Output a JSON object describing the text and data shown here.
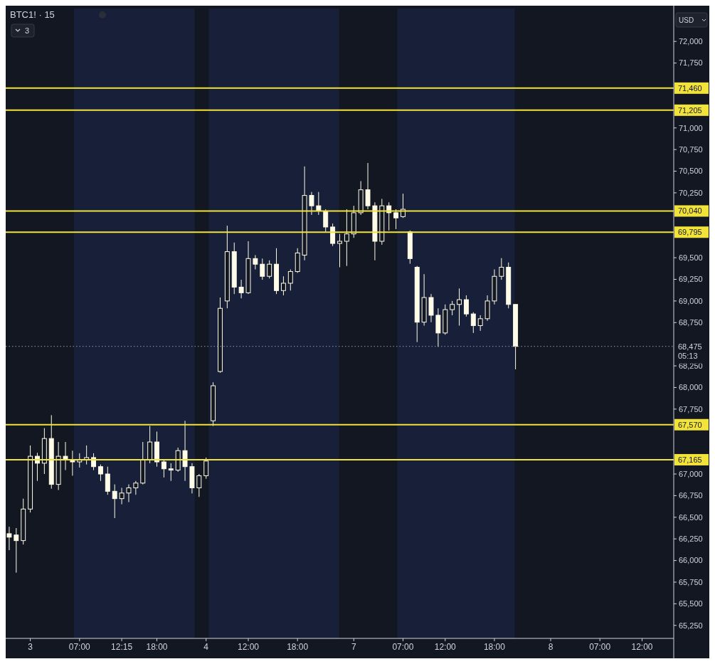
{
  "chart_data": {
    "type": "candlestick",
    "title": "BTC1! · 15",
    "color": "#fffde7",
    "categories": [
      null,
      null,
      null,
      "3",
      null,
      null,
      null,
      null,
      null,
      null,
      "07:00",
      null,
      null,
      null,
      null,
      null,
      "12:15",
      null,
      null,
      null,
      null,
      "18:00",
      null,
      null,
      null,
      null,
      null,
      null,
      "4",
      null,
      null,
      null,
      null,
      null,
      "12:00",
      null,
      null,
      null,
      null,
      null,
      null,
      "18:00",
      null,
      null,
      null,
      null,
      null,
      null,
      null,
      "7",
      null,
      null,
      null,
      null,
      null,
      null,
      "07:00",
      null,
      null,
      null,
      null,
      null,
      "12:00",
      null,
      null,
      null,
      null,
      null,
      null,
      "18:00",
      null,
      null,
      null,
      null,
      null,
      null,
      null,
      "8",
      null,
      null,
      null,
      null,
      null,
      null,
      "07:00",
      null,
      null,
      null,
      null,
      null,
      "12:00",
      null,
      null,
      null,
      null
    ],
    "ohlc": [
      [
        66310,
        66390,
        66120,
        66270
      ],
      [
        66295,
        66375,
        65860,
        66230
      ],
      [
        66230,
        66715,
        66185,
        66595
      ],
      [
        66595,
        67330,
        66555,
        67205
      ],
      [
        67205,
        67245,
        66920,
        67125
      ],
      [
        67125,
        67530,
        67000,
        67410
      ],
      [
        67410,
        67680,
        66830,
        66880
      ],
      [
        66880,
        67370,
        66815,
        67205
      ],
      [
        67205,
        67370,
        67045,
        67165
      ],
      [
        67165,
        67270,
        66980,
        67140
      ],
      [
        67140,
        67240,
        67075,
        67165
      ],
      [
        67165,
        67330,
        67110,
        67190
      ],
      [
        67190,
        67240,
        67045,
        67085
      ],
      [
        67085,
        67110,
        66920,
        67000
      ],
      [
        67000,
        67085,
        66760,
        66800
      ],
      [
        66800,
        66880,
        66490,
        66715
      ],
      [
        66715,
        66840,
        66650,
        66780
      ],
      [
        66780,
        66880,
        66675,
        66840
      ],
      [
        66840,
        66920,
        66760,
        66895
      ],
      [
        66895,
        67370,
        66880,
        67165
      ],
      [
        67165,
        67555,
        67125,
        67370
      ],
      [
        67370,
        67490,
        67085,
        67140
      ],
      [
        67140,
        67165,
        66960,
        67060
      ],
      [
        67060,
        67125,
        66920,
        67045
      ],
      [
        67045,
        67305,
        67025,
        67270
      ],
      [
        67270,
        67615,
        66920,
        67085
      ],
      [
        67085,
        67125,
        66775,
        66840
      ],
      [
        66840,
        67000,
        66735,
        66980
      ],
      [
        66980,
        67190,
        66945,
        67150
      ],
      [
        67615,
        68060,
        67555,
        68020
      ],
      [
        68185,
        69040,
        68170,
        68915
      ],
      [
        69000,
        69870,
        68915,
        69570
      ],
      [
        69570,
        69675,
        69080,
        69160
      ],
      [
        69160,
        69245,
        69030,
        69095
      ],
      [
        69095,
        69690,
        69080,
        69490
      ],
      [
        69490,
        69530,
        69365,
        69425
      ],
      [
        69425,
        69490,
        69245,
        69285
      ],
      [
        69285,
        69470,
        69260,
        69425
      ],
      [
        69425,
        69610,
        69080,
        69120
      ],
      [
        69120,
        69285,
        69065,
        69205
      ],
      [
        69205,
        69365,
        69120,
        69340
      ],
      [
        69340,
        69610,
        69325,
        69555
      ],
      [
        69530,
        70555,
        69470,
        70220
      ],
      [
        70220,
        70260,
        69995,
        70100
      ],
      [
        70100,
        70260,
        69995,
        70040
      ],
      [
        70040,
        70060,
        69800,
        69855
      ],
      [
        69855,
        69895,
        69635,
        69665
      ],
      [
        69665,
        69775,
        69390,
        69690
      ],
      [
        69690,
        70060,
        69405,
        69775
      ],
      [
        69775,
        70100,
        69730,
        70020
      ],
      [
        70020,
        70385,
        69995,
        70285
      ],
      [
        70285,
        70595,
        70060,
        70100
      ],
      [
        70100,
        70140,
        69470,
        69690
      ],
      [
        69690,
        70180,
        69650,
        70100
      ],
      [
        70100,
        70140,
        69815,
        70020
      ],
      [
        70020,
        70060,
        69830,
        69960
      ],
      [
        69975,
        70240,
        69960,
        70060
      ],
      [
        69800,
        69815,
        69430,
        69490
      ],
      [
        69390,
        69405,
        68525,
        68755
      ],
      [
        68755,
        69310,
        68715,
        69040
      ],
      [
        69040,
        69080,
        68755,
        68835
      ],
      [
        68835,
        68915,
        68470,
        68630
      ],
      [
        68630,
        68960,
        68610,
        68900
      ],
      [
        68900,
        69000,
        68835,
        68960
      ],
      [
        68960,
        69145,
        68715,
        69015
      ],
      [
        69015,
        69065,
        68820,
        68850
      ],
      [
        68850,
        68870,
        68630,
        68715
      ],
      [
        68715,
        68835,
        68655,
        68795
      ],
      [
        68795,
        69065,
        68770,
        69000
      ],
      [
        69000,
        69365,
        68960,
        69285
      ],
      [
        69285,
        69495,
        69245,
        69390
      ],
      [
        69390,
        69445,
        68915,
        68960
      ],
      [
        68960,
        68960,
        68210,
        68475
      ],
      null,
      null,
      null,
      null,
      null,
      null,
      null,
      null,
      null,
      null,
      null,
      null,
      null,
      null,
      null,
      null,
      null,
      null,
      null,
      null,
      null,
      null
    ],
    "ylim": [
      65100,
      72380
    ],
    "yticks": [
      {
        "value": 65250,
        "label": "65,250"
      },
      {
        "value": 65500,
        "label": "65,500"
      },
      {
        "value": 65750,
        "label": "65,750"
      },
      {
        "value": 66000,
        "label": "66,000"
      },
      {
        "value": 66250,
        "label": "66,250"
      },
      {
        "value": 66500,
        "label": "66,500"
      },
      {
        "value": 66750,
        "label": "66,750"
      },
      {
        "value": 67000,
        "label": "67,000"
      },
      {
        "value": 67750,
        "label": "67,750"
      },
      {
        "value": 68000,
        "label": "68,000"
      },
      {
        "value": 68250,
        "label": "68,250"
      },
      {
        "value": 68750,
        "label": "68,750"
      },
      {
        "value": 69000,
        "label": "69,000"
      },
      {
        "value": 69250,
        "label": "69,250"
      },
      {
        "value": 69500,
        "label": "69,500"
      },
      {
        "value": 70250,
        "label": "70,250"
      },
      {
        "value": 70500,
        "label": "70,500"
      },
      {
        "value": 70750,
        "label": "70,750"
      },
      {
        "value": 71000,
        "label": "71,000"
      },
      {
        "value": 71750,
        "label": "71,750"
      },
      {
        "value": 72000,
        "label": "72,000"
      }
    ],
    "ref_lines": [
      {
        "axis": "y",
        "value": 71460,
        "label": "71,460",
        "color": "#f2e33a"
      },
      {
        "axis": "y",
        "value": 71205,
        "label": "71,205",
        "color": "#f2e33a"
      },
      {
        "axis": "y",
        "value": 70040,
        "label": "70,040",
        "color": "#f2e33a"
      },
      {
        "axis": "y",
        "value": 69795,
        "label": "69,795",
        "color": "#f2e33a"
      },
      {
        "axis": "y",
        "value": 68475,
        "label": "68,475\n05:13",
        "color": "#9598a1",
        "line_style": "dotted"
      },
      {
        "axis": "y",
        "value": 67570,
        "label": "67,570",
        "color": "#f2e33a"
      },
      {
        "axis": "y",
        "value": 67165,
        "label": "67,165",
        "color": "#f2e33a"
      }
    ],
    "annotations": [
      "3",
      "USD"
    ]
  }
}
